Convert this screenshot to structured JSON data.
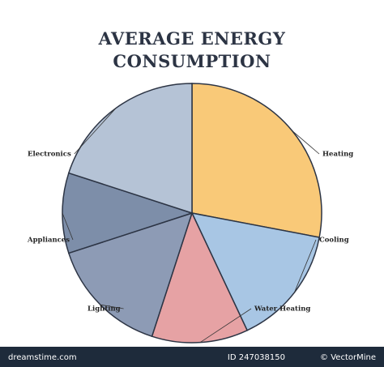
{
  "chart_data": {
    "type": "pie",
    "title": "AVERAGE ENERGY CONSUMPTION",
    "categories": [
      "Heating",
      "Cooling",
      "Water Heating",
      "Lighting",
      "Appliances",
      "Electronics"
    ],
    "values": [
      28,
      15,
      12,
      15,
      10,
      20
    ],
    "colors": [
      "#f9c978",
      "#a8c6e4",
      "#e6a2a4",
      "#8d9bb5",
      "#7d8ea9",
      "#b5c3d6"
    ]
  },
  "footer": {
    "site": "dreamstime.com",
    "id": "ID 247038150",
    "author": "© VectorMine"
  }
}
